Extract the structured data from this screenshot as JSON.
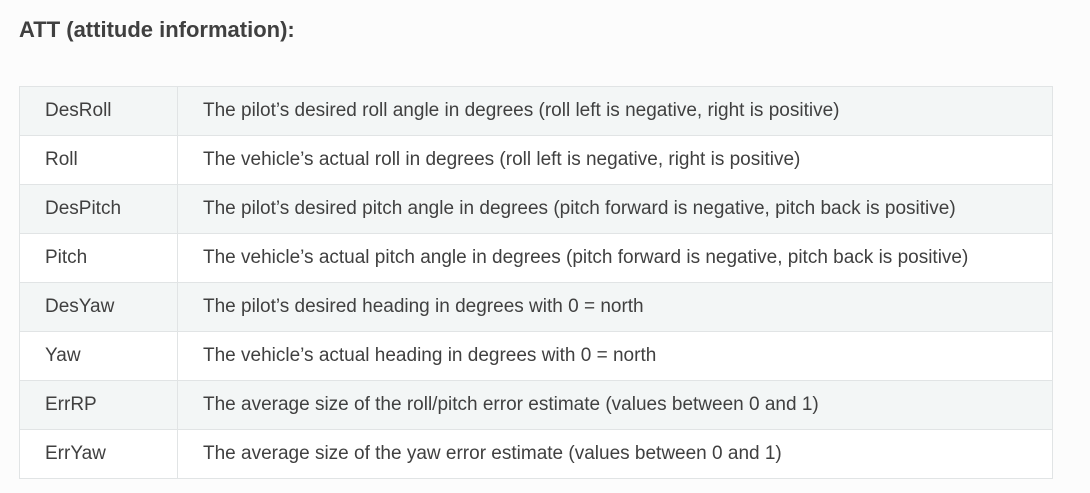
{
  "heading": "ATT (attitude information):",
  "rows": [
    {
      "name": "DesRoll",
      "description": "The pilot’s desired roll angle in degrees (roll left is negative, right is positive)"
    },
    {
      "name": "Roll",
      "description": "The vehicle’s actual roll in degrees (roll left is negative, right is positive)"
    },
    {
      "name": "DesPitch",
      "description": "The pilot’s desired pitch angle in degrees (pitch forward is negative, pitch back is positive)"
    },
    {
      "name": "Pitch",
      "description": "The vehicle’s actual pitch angle in degrees (pitch forward is negative, pitch back is positive)"
    },
    {
      "name": "DesYaw",
      "description": "The pilot’s desired heading in degrees with 0 = north"
    },
    {
      "name": "Yaw",
      "description": "The vehicle’s actual heading in degrees with 0 = north"
    },
    {
      "name": "ErrRP",
      "description": "The average size of the roll/pitch error estimate (values between 0 and 1)"
    },
    {
      "name": "ErrYaw",
      "description": "The average size of the yaw error estimate (values between 0 and 1)"
    }
  ]
}
